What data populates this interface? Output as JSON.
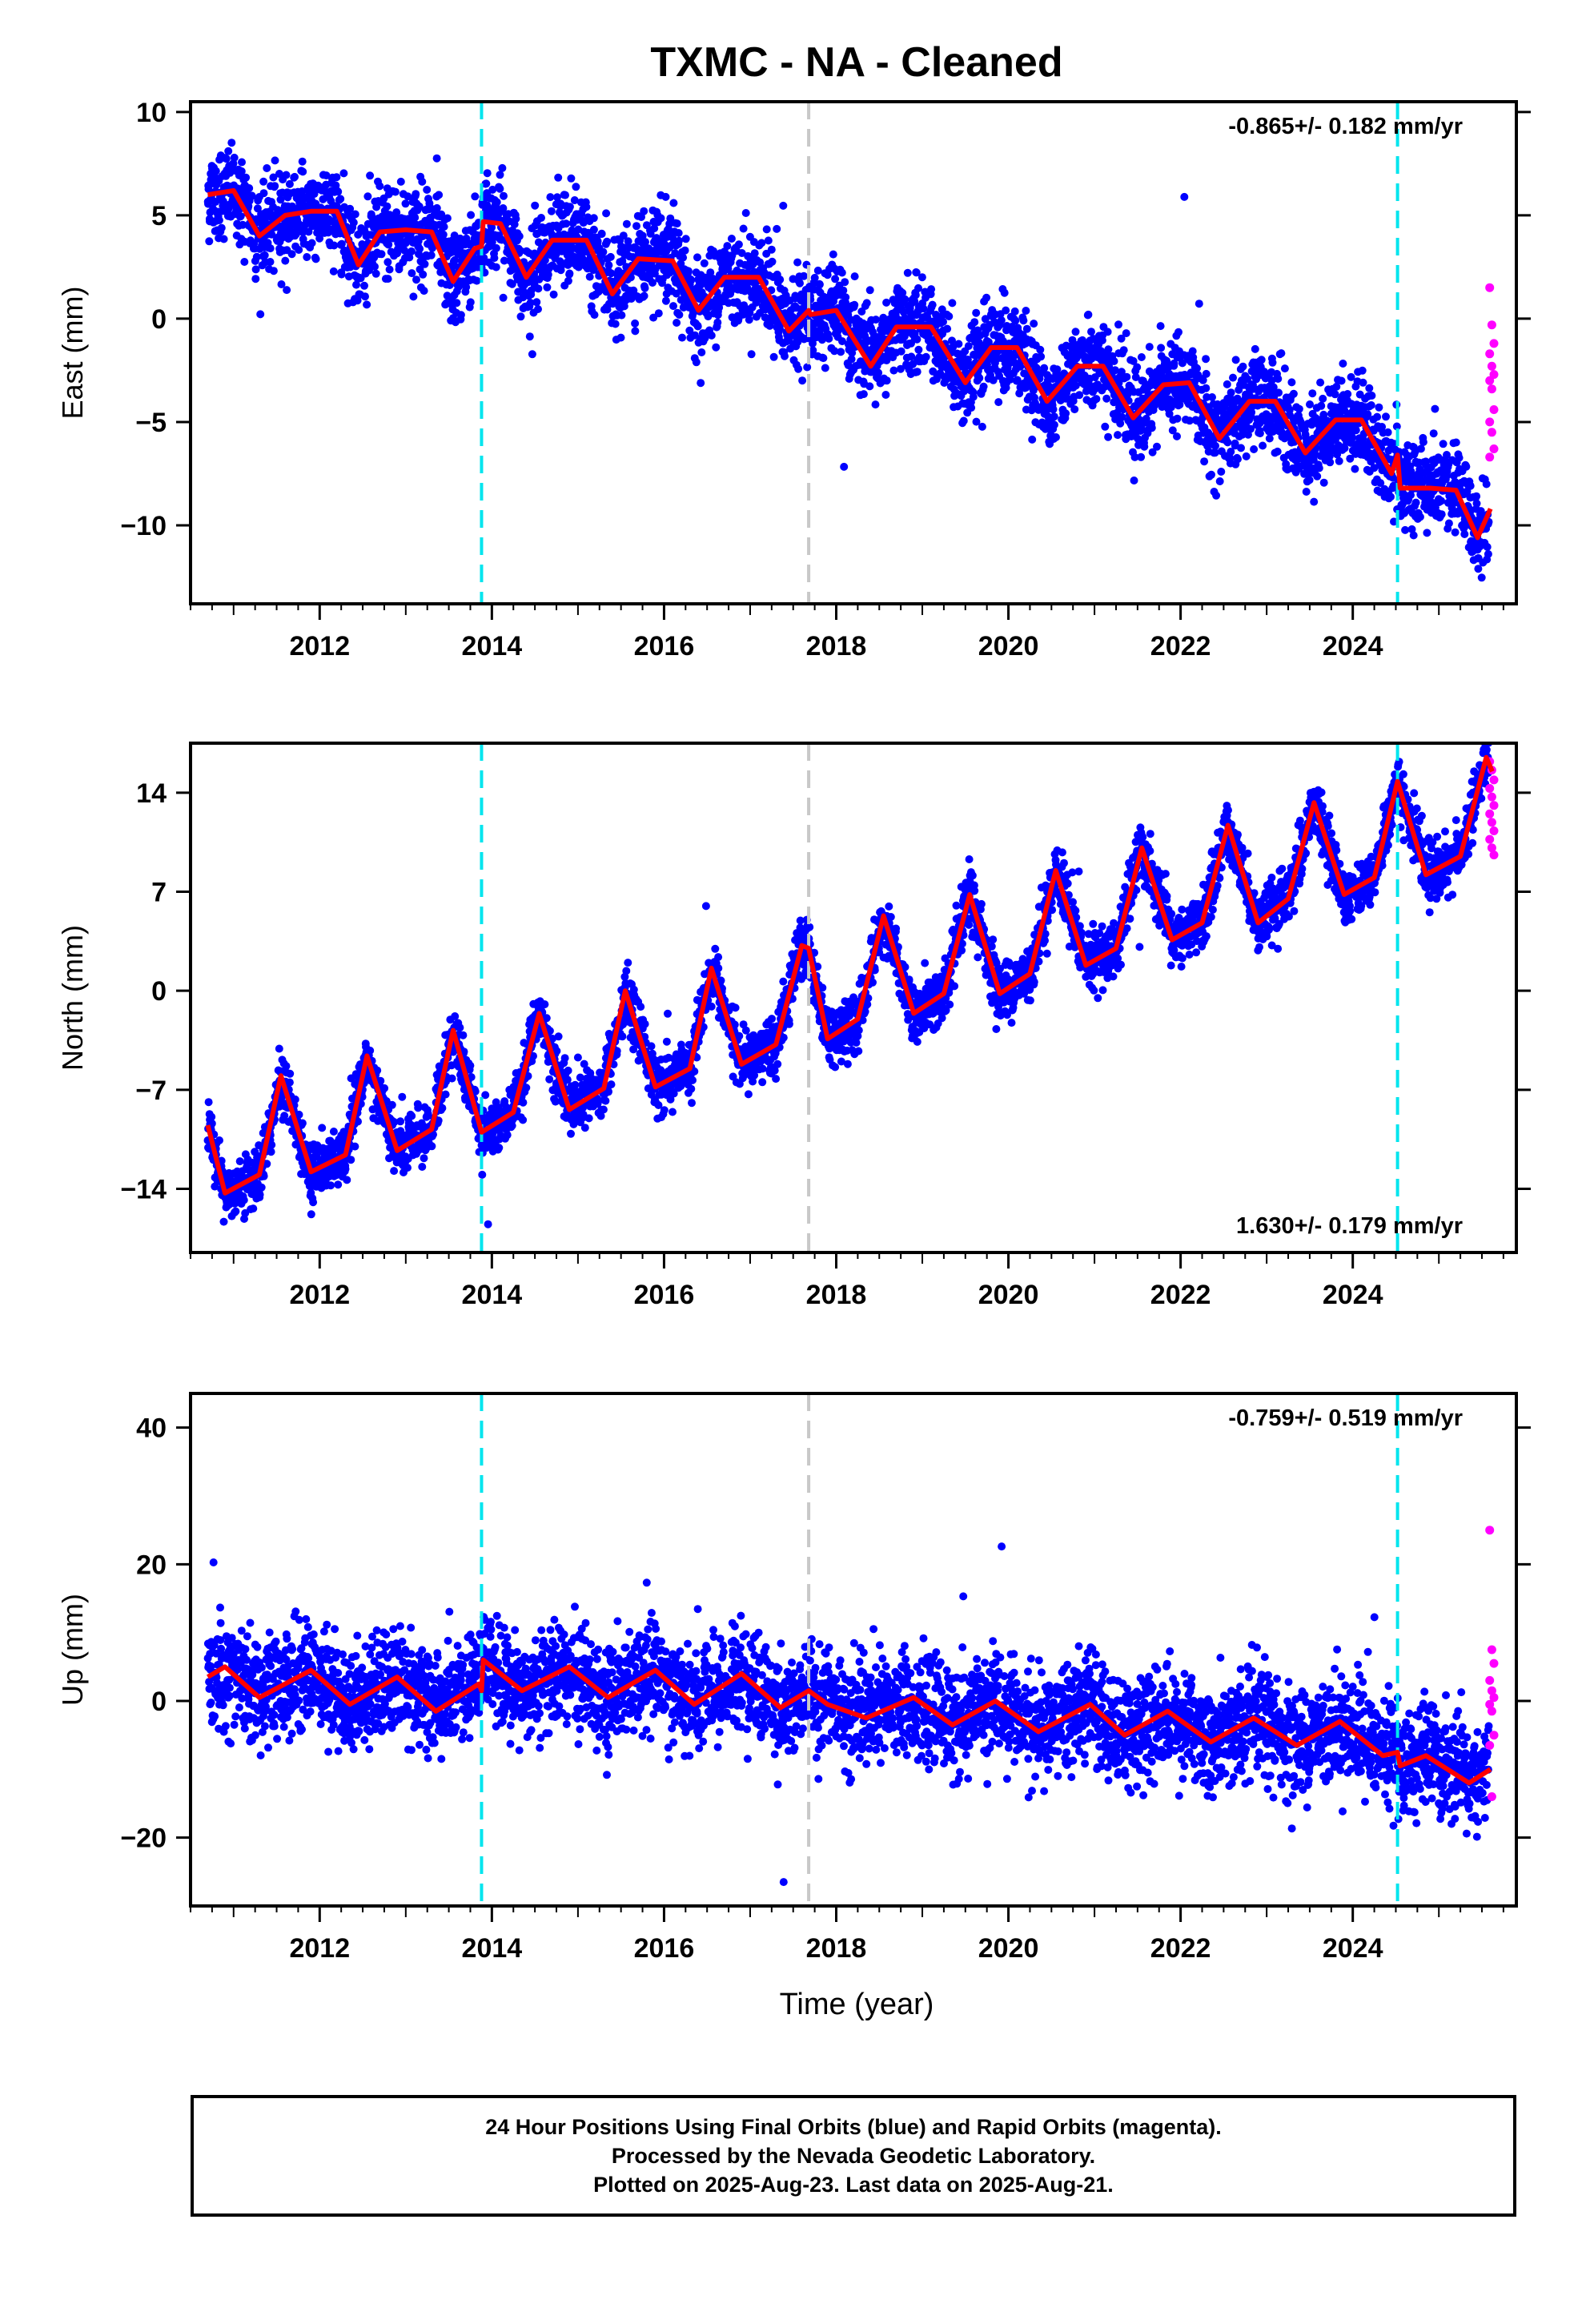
{
  "title": "TXMC  - NA - Cleaned",
  "xlabel": "Time (year)",
  "footer": {
    "line1": "24 Hour Positions Using Final Orbits (blue) and Rapid Orbits (magenta).",
    "line2": "Processed by the Nevada Geodetic Laboratory.",
    "line3": "Plotted on 2025-Aug-23. Last data on 2025-Aug-21."
  },
  "colors": {
    "final_points": "#0000ff",
    "rapid_points": "#ff00ff",
    "model_line": "#ff0000",
    "equipment_change": "#00e5ee",
    "earthquake_marker": "#c8c8c8"
  },
  "chart_data": [
    {
      "type": "scatter",
      "panel": "east",
      "ylabel": "East (mm)",
      "rate_label": "-0.865+/- 0.182 mm/yr",
      "xlim": [
        2010.5,
        2025.9
      ],
      "ylim": [
        -13.8,
        10.5
      ],
      "xticks": [
        2012,
        2014,
        2016,
        2018,
        2020,
        2022,
        2024
      ],
      "yticks": [
        -10,
        -5,
        0,
        5,
        10
      ],
      "ytick_labels": [
        "−10",
        "−5",
        "0",
        "5",
        "10"
      ],
      "vlines_cyan": [
        2013.88,
        2024.52
      ],
      "vlines_gray": [
        2017.68
      ],
      "model_anchors": [
        [
          2010.7,
          6.0
        ],
        [
          2011.0,
          6.2
        ],
        [
          2011.3,
          4.0
        ],
        [
          2011.6,
          5.0
        ],
        [
          2011.9,
          5.2
        ],
        [
          2012.2,
          5.2
        ],
        [
          2012.45,
          2.6
        ],
        [
          2012.7,
          4.2
        ],
        [
          2013.0,
          4.3
        ],
        [
          2013.3,
          4.2
        ],
        [
          2013.55,
          1.8
        ],
        [
          2013.8,
          3.4
        ],
        [
          2013.88,
          3.5
        ],
        [
          2013.9,
          4.7
        ],
        [
          2014.1,
          4.6
        ],
        [
          2014.4,
          2.0
        ],
        [
          2014.7,
          3.8
        ],
        [
          2015.1,
          3.8
        ],
        [
          2015.4,
          1.2
        ],
        [
          2015.7,
          2.9
        ],
        [
          2016.1,
          2.8
        ],
        [
          2016.4,
          0.4
        ],
        [
          2016.7,
          2.0
        ],
        [
          2017.1,
          2.0
        ],
        [
          2017.45,
          -0.6
        ],
        [
          2017.68,
          0.4
        ],
        [
          2017.7,
          0.2
        ],
        [
          2018.0,
          0.4
        ],
        [
          2018.4,
          -2.3
        ],
        [
          2018.7,
          -0.4
        ],
        [
          2019.1,
          -0.4
        ],
        [
          2019.5,
          -3.1
        ],
        [
          2019.8,
          -1.4
        ],
        [
          2020.1,
          -1.4
        ],
        [
          2020.45,
          -4.0
        ],
        [
          2020.8,
          -2.3
        ],
        [
          2021.1,
          -2.3
        ],
        [
          2021.45,
          -4.8
        ],
        [
          2021.8,
          -3.2
        ],
        [
          2022.1,
          -3.1
        ],
        [
          2022.45,
          -5.8
        ],
        [
          2022.8,
          -4.0
        ],
        [
          2023.1,
          -4.0
        ],
        [
          2023.45,
          -6.5
        ],
        [
          2023.8,
          -4.9
        ],
        [
          2024.1,
          -4.9
        ],
        [
          2024.45,
          -7.5
        ],
        [
          2024.52,
          -6.6
        ],
        [
          2024.55,
          -8.2
        ],
        [
          2024.9,
          -8.2
        ],
        [
          2025.2,
          -8.3
        ],
        [
          2025.45,
          -10.6
        ],
        [
          2025.6,
          -9.2
        ]
      ],
      "rapid_points": {
        "x_range": [
          2025.59,
          2025.64
        ],
        "y_values": [
          1.5,
          -0.3,
          -1.2,
          -1.7,
          -2.3,
          -2.7,
          -3.0,
          -3.4,
          -4.4,
          -5.0,
          -5.5,
          -6.3,
          -6.7
        ]
      }
    },
    {
      "type": "scatter",
      "panel": "north",
      "ylabel": "North (mm)",
      "rate_label": "1.630+/- 0.179 mm/yr",
      "xlim": [
        2010.5,
        2025.9
      ],
      "ylim": [
        -18.5,
        17.5
      ],
      "xticks": [
        2012,
        2014,
        2016,
        2018,
        2020,
        2022,
        2024
      ],
      "yticks": [
        -14,
        -7,
        0,
        7,
        14
      ],
      "ytick_labels": [
        "−14",
        "−7",
        "0",
        "7",
        "14"
      ],
      "vlines_cyan": [
        2013.88,
        2024.52
      ],
      "vlines_gray": [
        2017.68
      ],
      "model_anchors": [
        [
          2010.7,
          -9.5
        ],
        [
          2010.9,
          -14.3
        ],
        [
          2011.3,
          -13.0
        ],
        [
          2011.55,
          -6.0
        ],
        [
          2011.9,
          -12.8
        ],
        [
          2012.3,
          -11.6
        ],
        [
          2012.55,
          -4.6
        ],
        [
          2012.9,
          -11.3
        ],
        [
          2013.3,
          -9.8
        ],
        [
          2013.55,
          -2.8
        ],
        [
          2013.88,
          -10.0
        ],
        [
          2014.25,
          -8.6
        ],
        [
          2014.55,
          -1.6
        ],
        [
          2014.9,
          -8.4
        ],
        [
          2015.3,
          -6.9
        ],
        [
          2015.55,
          0.0
        ],
        [
          2015.9,
          -6.8
        ],
        [
          2016.3,
          -5.5
        ],
        [
          2016.55,
          1.6
        ],
        [
          2016.9,
          -5.2
        ],
        [
          2017.3,
          -3.8
        ],
        [
          2017.6,
          3.2
        ],
        [
          2017.68,
          3.0
        ],
        [
          2017.9,
          -3.4
        ],
        [
          2018.25,
          -2.0
        ],
        [
          2018.55,
          5.3
        ],
        [
          2018.9,
          -1.6
        ],
        [
          2019.25,
          -0.2
        ],
        [
          2019.55,
          6.8
        ],
        [
          2019.9,
          -0.2
        ],
        [
          2020.25,
          1.2
        ],
        [
          2020.55,
          8.5
        ],
        [
          2020.9,
          1.8
        ],
        [
          2021.25,
          3.0
        ],
        [
          2021.55,
          10.1
        ],
        [
          2021.9,
          3.6
        ],
        [
          2022.25,
          4.8
        ],
        [
          2022.55,
          11.7
        ],
        [
          2022.9,
          4.8
        ],
        [
          2023.25,
          6.5
        ],
        [
          2023.55,
          13.3
        ],
        [
          2023.9,
          6.8
        ],
        [
          2024.25,
          8.0
        ],
        [
          2024.52,
          14.8
        ],
        [
          2024.85,
          8.2
        ],
        [
          2025.25,
          9.5
        ],
        [
          2025.55,
          16.5
        ],
        [
          2025.62,
          15.5
        ]
      ],
      "rapid_points": {
        "x_range": [
          2025.59,
          2025.64
        ],
        "y_values": [
          16.2,
          15.6,
          14.9,
          14.3,
          13.7,
          13.1,
          12.5,
          11.9,
          11.3,
          10.7,
          10.1,
          9.6
        ]
      }
    },
    {
      "type": "scatter",
      "panel": "up",
      "ylabel": "Up (mm)",
      "rate_label": "-0.759+/- 0.519 mm/yr",
      "xlim": [
        2010.5,
        2025.9
      ],
      "ylim": [
        -30,
        45
      ],
      "xticks": [
        2012,
        2014,
        2016,
        2018,
        2020,
        2022,
        2024
      ],
      "yticks": [
        -20,
        0,
        20,
        40
      ],
      "ytick_labels": [
        "−20",
        "0",
        "20",
        "40"
      ],
      "vlines_cyan": [
        2013.88,
        2024.52
      ],
      "vlines_gray": [
        2017.68
      ],
      "model_anchors": [
        [
          2010.7,
          3.5
        ],
        [
          2010.9,
          5.0
        ],
        [
          2011.3,
          0.5
        ],
        [
          2011.9,
          4.5
        ],
        [
          2012.35,
          -0.5
        ],
        [
          2012.9,
          3.5
        ],
        [
          2013.35,
          -1.5
        ],
        [
          2013.85,
          2.5
        ],
        [
          2013.88,
          1.5
        ],
        [
          2013.9,
          6.0
        ],
        [
          2014.35,
          1.5
        ],
        [
          2014.9,
          5.0
        ],
        [
          2015.35,
          0.5
        ],
        [
          2015.9,
          4.5
        ],
        [
          2016.35,
          -0.5
        ],
        [
          2016.9,
          4.0
        ],
        [
          2017.35,
          -1.0
        ],
        [
          2017.68,
          1.5
        ],
        [
          2017.9,
          -0.5
        ],
        [
          2018.35,
          -2.5
        ],
        [
          2018.9,
          0.5
        ],
        [
          2019.35,
          -3.5
        ],
        [
          2019.85,
          0.0
        ],
        [
          2020.35,
          -4.5
        ],
        [
          2020.95,
          -0.5
        ],
        [
          2021.35,
          -5.0
        ],
        [
          2021.85,
          -1.5
        ],
        [
          2022.35,
          -6.0
        ],
        [
          2022.85,
          -2.5
        ],
        [
          2023.35,
          -6.5
        ],
        [
          2023.85,
          -3.0
        ],
        [
          2024.35,
          -8.0
        ],
        [
          2024.52,
          -7.5
        ],
        [
          2024.55,
          -9.5
        ],
        [
          2024.85,
          -8.0
        ],
        [
          2025.35,
          -12.0
        ],
        [
          2025.6,
          -10.0
        ]
      ],
      "rapid_points": {
        "x_range": [
          2025.59,
          2025.64
        ],
        "y_values": [
          25.0,
          7.5,
          5.5,
          3.0,
          1.5,
          0.5,
          -0.5,
          -1.5,
          -5.0,
          -6.5,
          -14.0
        ]
      }
    }
  ]
}
